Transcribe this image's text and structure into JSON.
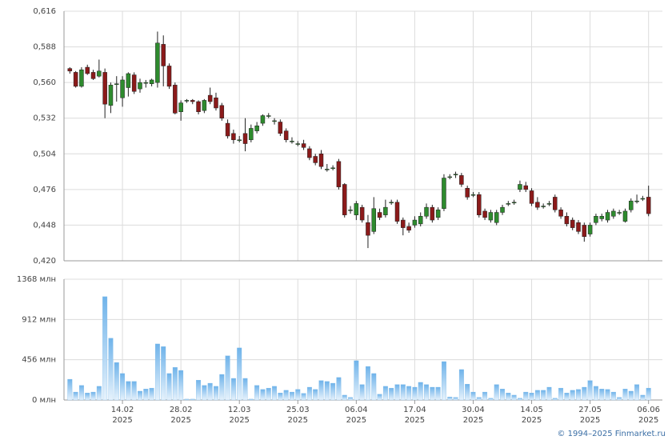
{
  "chart_data": [
    {
      "type": "candlestick",
      "up_color": "#2e8b2e",
      "down_color": "#8b1a1a",
      "xlim": [
        -1,
        100
      ],
      "ylim": [
        0.42,
        0.616
      ],
      "yticks": [
        {
          "value": 0.42,
          "label": "0,420"
        },
        {
          "value": 0.448,
          "label": "0,448"
        },
        {
          "value": 0.476,
          "label": "0,476"
        },
        {
          "value": 0.504,
          "label": "0,504"
        },
        {
          "value": 0.532,
          "label": "0,532"
        },
        {
          "value": 0.56,
          "label": "0,560"
        },
        {
          "value": 0.588,
          "label": "0,588"
        },
        {
          "value": 0.616,
          "label": "0,616"
        }
      ],
      "grid": true,
      "open": [
        0.571,
        0.568,
        0.557,
        0.572,
        0.568,
        0.565,
        0.568,
        0.542,
        0.559,
        0.548,
        0.556,
        0.566,
        0.555,
        0.56,
        0.559,
        0.56,
        0.59,
        0.573,
        0.558,
        0.537,
        0.546,
        0.546,
        0.545,
        0.538,
        0.55,
        0.548,
        0.542,
        0.528,
        0.52,
        0.515,
        0.52,
        0.515,
        0.522,
        0.528,
        0.534,
        0.53,
        0.529,
        0.522,
        0.514,
        0.512,
        0.512,
        0.508,
        0.502,
        0.504,
        0.492,
        0.493,
        0.498,
        0.48,
        0.46,
        0.456,
        0.462,
        0.45,
        0.443,
        0.458,
        0.456,
        0.466,
        0.466,
        0.452,
        0.447,
        0.448,
        0.449,
        0.455,
        0.462,
        0.454,
        0.461,
        0.486,
        0.488,
        0.487,
        0.477,
        0.472,
        0.472,
        0.459,
        0.452,
        0.45,
        0.458,
        0.465,
        0.466,
        0.476,
        0.479,
        0.475,
        0.466,
        0.463,
        0.465,
        0.47,
        0.46,
        0.455,
        0.452,
        0.45,
        0.448,
        0.441,
        0.45,
        0.453,
        0.452,
        0.455,
        0.458,
        0.451,
        0.46,
        0.467,
        0.469,
        0.47
      ],
      "high": [
        0.572,
        0.569,
        0.572,
        0.574,
        0.57,
        0.578,
        0.571,
        0.56,
        0.565,
        0.565,
        0.568,
        0.568,
        0.563,
        0.562,
        0.563,
        0.6,
        0.597,
        0.575,
        0.56,
        0.546,
        0.547,
        0.547,
        0.546,
        0.547,
        0.556,
        0.552,
        0.544,
        0.531,
        0.523,
        0.518,
        0.532,
        0.527,
        0.529,
        0.535,
        0.536,
        0.532,
        0.531,
        0.524,
        0.517,
        0.514,
        0.515,
        0.51,
        0.504,
        0.507,
        0.496,
        0.495,
        0.5,
        0.481,
        0.463,
        0.467,
        0.464,
        0.456,
        0.47,
        0.461,
        0.468,
        0.468,
        0.468,
        0.454,
        0.45,
        0.455,
        0.458,
        0.465,
        0.464,
        0.462,
        0.488,
        0.488,
        0.49,
        0.489,
        0.479,
        0.474,
        0.474,
        0.461,
        0.46,
        0.46,
        0.464,
        0.467,
        0.468,
        0.483,
        0.482,
        0.477,
        0.47,
        0.465,
        0.467,
        0.472,
        0.462,
        0.458,
        0.454,
        0.452,
        0.45,
        0.45,
        0.457,
        0.457,
        0.46,
        0.461,
        0.46,
        0.461,
        0.469,
        0.472,
        0.471,
        0.479
      ],
      "low": [
        0.567,
        0.556,
        0.556,
        0.566,
        0.562,
        0.564,
        0.532,
        0.536,
        0.545,
        0.541,
        0.549,
        0.551,
        0.552,
        0.556,
        0.557,
        0.556,
        0.557,
        0.555,
        0.535,
        0.53,
        0.544,
        0.543,
        0.535,
        0.536,
        0.543,
        0.538,
        0.53,
        0.516,
        0.512,
        0.513,
        0.506,
        0.513,
        0.52,
        0.526,
        0.532,
        0.527,
        0.518,
        0.513,
        0.512,
        0.51,
        0.507,
        0.499,
        0.495,
        0.492,
        0.49,
        0.491,
        0.476,
        0.454,
        0.457,
        0.452,
        0.45,
        0.43,
        0.441,
        0.452,
        0.454,
        0.464,
        0.449,
        0.44,
        0.442,
        0.446,
        0.447,
        0.453,
        0.45,
        0.452,
        0.459,
        0.484,
        0.485,
        0.478,
        0.468,
        0.47,
        0.454,
        0.452,
        0.45,
        0.448,
        0.456,
        0.463,
        0.464,
        0.474,
        0.474,
        0.463,
        0.46,
        0.461,
        0.463,
        0.458,
        0.453,
        0.447,
        0.444,
        0.441,
        0.435,
        0.439,
        0.448,
        0.451,
        0.45,
        0.453,
        0.456,
        0.45,
        0.458,
        0.465,
        0.467,
        0.455
      ],
      "close": [
        0.569,
        0.557,
        0.57,
        0.567,
        0.563,
        0.569,
        0.543,
        0.558,
        0.559,
        0.562,
        0.567,
        0.553,
        0.56,
        0.56,
        0.562,
        0.591,
        0.573,
        0.557,
        0.536,
        0.544,
        0.546,
        0.545,
        0.537,
        0.546,
        0.545,
        0.54,
        0.532,
        0.518,
        0.515,
        0.515,
        0.512,
        0.524,
        0.526,
        0.534,
        0.534,
        0.53,
        0.52,
        0.515,
        0.514,
        0.512,
        0.509,
        0.501,
        0.497,
        0.494,
        0.492,
        0.493,
        0.478,
        0.456,
        0.46,
        0.465,
        0.452,
        0.44,
        0.461,
        0.454,
        0.462,
        0.466,
        0.451,
        0.446,
        0.444,
        0.452,
        0.455,
        0.462,
        0.452,
        0.46,
        0.485,
        0.486,
        0.488,
        0.48,
        0.47,
        0.472,
        0.456,
        0.454,
        0.458,
        0.458,
        0.462,
        0.465,
        0.466,
        0.48,
        0.476,
        0.465,
        0.462,
        0.463,
        0.465,
        0.46,
        0.455,
        0.449,
        0.446,
        0.443,
        0.439,
        0.448,
        0.455,
        0.455,
        0.458,
        0.459,
        0.458,
        0.459,
        0.467,
        0.467,
        0.469,
        0.457
      ]
    },
    {
      "type": "bar",
      "color": "#7ab8e8",
      "xlim": [
        -1,
        100
      ],
      "xticks": [
        {
          "value": 9,
          "label": "14.02 2025"
        },
        {
          "value": 19,
          "label": "28.02 2025"
        },
        {
          "value": 29,
          "label": "12.03 2025"
        },
        {
          "value": 39,
          "label": "25.03 2025"
        },
        {
          "value": 49,
          "label": "06.04 2025"
        },
        {
          "value": 59,
          "label": "17.04 2025"
        },
        {
          "value": 69,
          "label": "30.04 2025"
        },
        {
          "value": 79,
          "label": "14.05 2025"
        },
        {
          "value": 89,
          "label": "27.05 2025"
        },
        {
          "value": 99,
          "label": "06.06 2025"
        }
      ],
      "ylim": [
        0,
        1368
      ],
      "yticks": [
        {
          "value": 0,
          "label": "0 млн"
        },
        {
          "value": 456,
          "label": "456 млн"
        },
        {
          "value": 912,
          "label": "912 млн"
        },
        {
          "value": 1368,
          "label": "1368 млн"
        }
      ],
      "grid": true,
      "values": [
        235,
        90,
        165,
        80,
        90,
        155,
        1170,
        700,
        425,
        300,
        210,
        210,
        100,
        125,
        135,
        635,
        605,
        300,
        370,
        335,
        10,
        10,
        225,
        165,
        190,
        155,
        290,
        500,
        245,
        590,
        245,
        10,
        165,
        120,
        135,
        155,
        80,
        110,
        90,
        120,
        75,
        145,
        120,
        220,
        210,
        190,
        255,
        55,
        30,
        445,
        175,
        380,
        300,
        65,
        155,
        135,
        175,
        175,
        155,
        145,
        200,
        175,
        145,
        145,
        435,
        35,
        30,
        345,
        180,
        90,
        30,
        90,
        20,
        175,
        125,
        80,
        55,
        20,
        90,
        80,
        110,
        110,
        145,
        20,
        135,
        80,
        110,
        120,
        145,
        220,
        155,
        125,
        120,
        90,
        30,
        125,
        100,
        175,
        55,
        135
      ]
    }
  ],
  "footer": "© 1994–2025 Finmarket.ru"
}
